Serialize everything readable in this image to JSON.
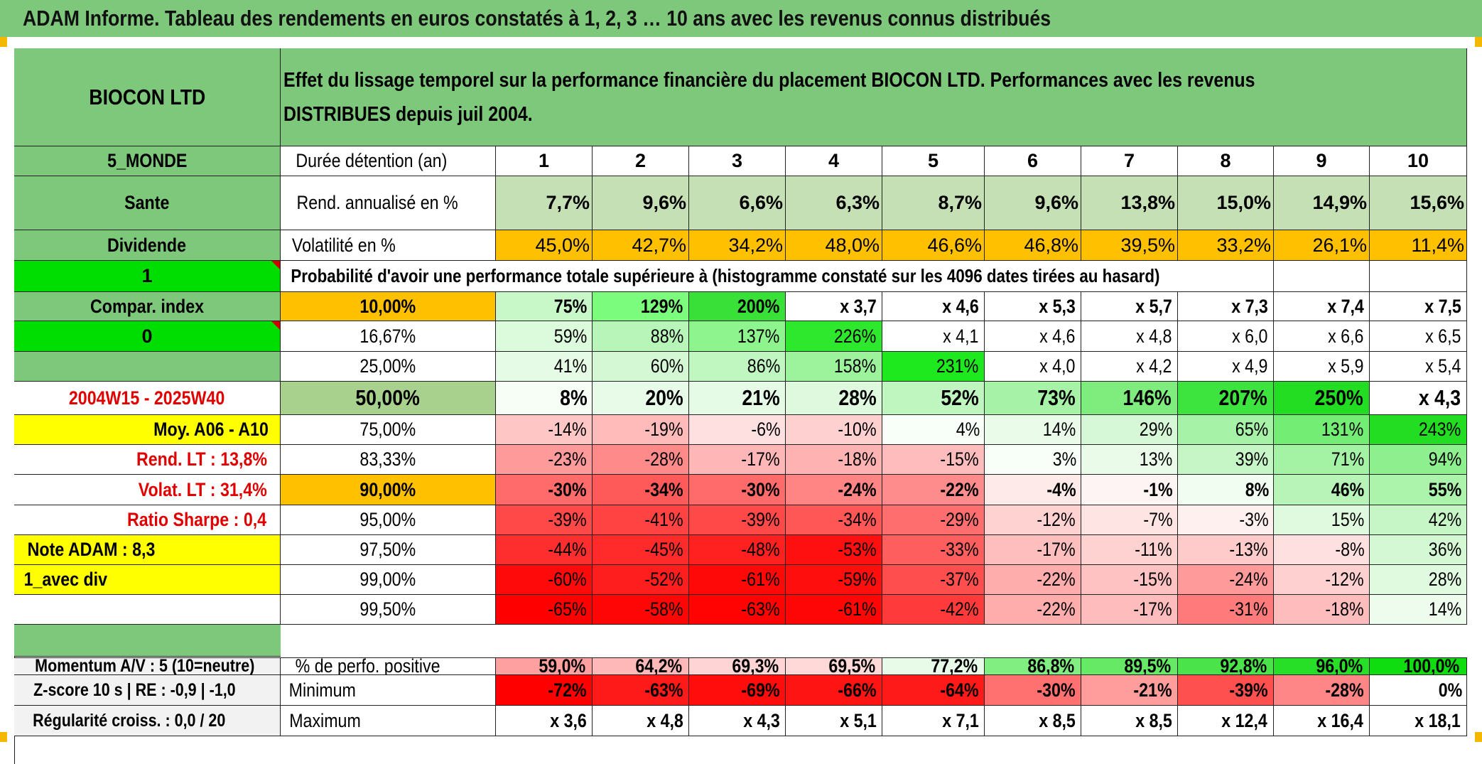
{
  "title": "ADAM Informe. Tableau des rendements en euros constatés à 1, 2, 3 … 10 ans avec les revenus connus distribués",
  "colors": {
    "header_green": "#7ec87b",
    "bright_green": "#00dd00",
    "orange": "#ffc000",
    "yellow": "#ffff00",
    "label_red": "#e00000"
  },
  "left": {
    "asset_name": "BIOCON LTD",
    "region": "5_MONDE",
    "sector": "Sante",
    "type": "Dividende",
    "flag_one": "1",
    "compar_index": "Compar. index",
    "flag_zero": "0",
    "blank_green": "",
    "period": "2004W15 - 2025W40",
    "moy": "Moy. A06 - A10",
    "rend_lt": "Rend. LT :    13,8%",
    "volat_lt": "Volat. LT :    31,4%",
    "sharpe": "Ratio Sharpe :    0,4",
    "note": "Note ADAM : 8,3",
    "avec_div": "1_avec div",
    "momentum": "Momentum A/V : 5 (10=neutre)",
    "zscore": "Z-score 10 s | RE : -0,9 | -1,0",
    "regularite": "Régularité croiss. : 0,0 / 20"
  },
  "header_text": "Effet du lissage temporel sur la performance financière du placement BIOCON LTD. Performances avec les revenus DISTRIBUES depuis juil 2004.",
  "duree_label": "Durée détention (an)",
  "years": [
    "1",
    "2",
    "3",
    "4",
    "5",
    "6",
    "7",
    "8",
    "9",
    "10"
  ],
  "rend_label": "Rend. annualisé en %",
  "rend": [
    "7,7%",
    "9,6%",
    "6,6%",
    "6,3%",
    "8,7%",
    "9,6%",
    "13,8%",
    "15,0%",
    "14,9%",
    "15,6%"
  ],
  "vol_label": "Volatilité en %",
  "vol": [
    "45,0%",
    "42,7%",
    "34,2%",
    "48,0%",
    "46,6%",
    "46,8%",
    "39,5%",
    "33,2%",
    "26,1%",
    "11,4%"
  ],
  "prob_text": "Probabilité d'avoir une performance totale supérieure à (histogramme constaté sur les 4096 dates tirées au hasard)",
  "quantiles": [
    {
      "p": "10,00%",
      "v": [
        "75%",
        "129%",
        "200%",
        "x 3,7",
        "x 4,6",
        "x 5,3",
        "x 5,7",
        "x 7,3",
        "x 7,4",
        "x 7,5"
      ]
    },
    {
      "p": "16,67%",
      "v": [
        "59%",
        "88%",
        "137%",
        "226%",
        "x 4,1",
        "x 4,6",
        "x 4,8",
        "x 6,0",
        "x 6,6",
        "x 6,5"
      ]
    },
    {
      "p": "25,00%",
      "v": [
        "41%",
        "60%",
        "86%",
        "158%",
        "231%",
        "x 4,0",
        "x 4,2",
        "x 4,9",
        "x 5,9",
        "x 5,4"
      ]
    },
    {
      "p": "50,00%",
      "v": [
        "8%",
        "20%",
        "21%",
        "28%",
        "52%",
        "73%",
        "146%",
        "207%",
        "250%",
        "x 4,3"
      ]
    },
    {
      "p": "75,00%",
      "v": [
        "-14%",
        "-19%",
        "-6%",
        "-10%",
        "4%",
        "14%",
        "29%",
        "65%",
        "131%",
        "243%"
      ]
    },
    {
      "p": "83,33%",
      "v": [
        "-23%",
        "-28%",
        "-17%",
        "-18%",
        "-15%",
        "3%",
        "13%",
        "39%",
        "71%",
        "94%"
      ]
    },
    {
      "p": "90,00%",
      "v": [
        "-30%",
        "-34%",
        "-30%",
        "-24%",
        "-22%",
        "-4%",
        "-1%",
        "8%",
        "46%",
        "55%"
      ]
    },
    {
      "p": "95,00%",
      "v": [
        "-39%",
        "-41%",
        "-39%",
        "-34%",
        "-29%",
        "-12%",
        "-7%",
        "-3%",
        "15%",
        "42%"
      ]
    },
    {
      "p": "97,50%",
      "v": [
        "-44%",
        "-45%",
        "-48%",
        "-53%",
        "-33%",
        "-17%",
        "-11%",
        "-13%",
        "-8%",
        "36%"
      ]
    },
    {
      "p": "99,00%",
      "v": [
        "-60%",
        "-52%",
        "-61%",
        "-59%",
        "-37%",
        "-22%",
        "-15%",
        "-24%",
        "-12%",
        "28%"
      ]
    },
    {
      "p": "99,50%",
      "v": [
        "-65%",
        "-58%",
        "-63%",
        "-61%",
        "-42%",
        "-22%",
        "-17%",
        "-31%",
        "-18%",
        "14%"
      ]
    }
  ],
  "pos_label": "% de perfo. positive",
  "pos": [
    "59,0%",
    "64,2%",
    "69,3%",
    "69,5%",
    "77,2%",
    "86,8%",
    "89,5%",
    "92,8%",
    "96,0%",
    "100,0%"
  ],
  "min_label": "Minimum",
  "min": [
    "-72%",
    "-63%",
    "-69%",
    "-66%",
    "-64%",
    "-30%",
    "-21%",
    "-39%",
    "-28%",
    "0%"
  ],
  "max_label": "Maximum",
  "max": [
    "x 3,6",
    "x 4,8",
    "x 4,3",
    "x 5,1",
    "x 7,1",
    "x 8,5",
    "x 8,5",
    "x 12,4",
    "x 16,4",
    "x 18,1"
  ],
  "fills": {
    "rend": [
      "#c5e0b4",
      "#c5e0b4",
      "#c5e0b4",
      "#c5e0b4",
      "#c5e0b4",
      "#c5e0b4",
      "#c5e0b4",
      "#c5e0b4",
      "#c5e0b4",
      "#c5e0b4"
    ],
    "vol": [
      "#ffc000",
      "#ffc000",
      "#ffc000",
      "#ffc000",
      "#ffc000",
      "#ffc000",
      "#ffc000",
      "#ffc000",
      "#ffc000",
      "#ffc000"
    ],
    "quantiles": [
      [
        "#c8f7c8",
        "#7cfc7c",
        "#38e038",
        "#ffffff",
        "#ffffff",
        "#ffffff",
        "#ffffff",
        "#ffffff",
        "#ffffff",
        "#ffffff"
      ],
      [
        "#dcfadc",
        "#b8f5b8",
        "#8ef58e",
        "#2ee82e",
        "#ffffff",
        "#ffffff",
        "#ffffff",
        "#ffffff",
        "#ffffff",
        "#ffffff"
      ],
      [
        "#e6fbe6",
        "#d4f8d4",
        "#c0f6c0",
        "#9cf39c",
        "#1ee81e",
        "#ffffff",
        "#ffffff",
        "#ffffff",
        "#ffffff",
        "#ffffff"
      ],
      [
        "#f6fef6",
        "#e8fbe8",
        "#e6fbe6",
        "#def9de",
        "#bff5bf",
        "#a6f2a6",
        "#7eed7e",
        "#3ee43e",
        "#22dd22",
        "#ffffff"
      ],
      [
        "#ffc6c6",
        "#ffbaba",
        "#ffe0e0",
        "#ffd0d0",
        "#f8fef8",
        "#eafbea",
        "#d6f8d6",
        "#a6f2a6",
        "#74ed74",
        "#22dd22"
      ],
      [
        "#ff9a9a",
        "#ff8a8a",
        "#ffb6b6",
        "#ffb2b2",
        "#ffbcbc",
        "#f8fef8",
        "#eafbea",
        "#c6f5c6",
        "#a4f2a4",
        "#8eef8e"
      ],
      [
        "#ff6a6a",
        "#ff5a5a",
        "#ff6a6a",
        "#ff8484",
        "#ff8c8c",
        "#ffeaea",
        "#fff4f4",
        "#f2fdf2",
        "#b8f4b8",
        "#acf3ac"
      ],
      [
        "#ff4848",
        "#ff4242",
        "#ff4848",
        "#ff5656",
        "#ff6e6e",
        "#ffd2d2",
        "#ffe4e4",
        "#fff0f0",
        "#e0fae0",
        "#c6f5c6"
      ],
      [
        "#ff2e2e",
        "#ff2a2a",
        "#ff2020",
        "#ff1010",
        "#ff5e5e",
        "#ffbebe",
        "#ffd2d2",
        "#ffcaca",
        "#ffe0e0",
        "#d4f8d4"
      ],
      [
        "#ff0a0a",
        "#ff1e1e",
        "#ff0808",
        "#ff0e0e",
        "#ff4e4e",
        "#ffacac",
        "#ffc2c2",
        "#ff9a9a",
        "#ffd0d0",
        "#e0fae0"
      ],
      [
        "#ff0000",
        "#ff0606",
        "#ff0202",
        "#ff0606",
        "#ff3a3a",
        "#ffacac",
        "#ffbcbc",
        "#ff7a7a",
        "#ffbcbc",
        "#eefcee"
      ]
    ],
    "pos": [
      "#ffa0a0",
      "#ffb8b8",
      "#ffd4d4",
      "#ffd8d8",
      "#e8fbe8",
      "#80ee80",
      "#66ea66",
      "#4ae44a",
      "#28df28",
      "#10dd10"
    ],
    "min": [
      "#ff0000",
      "#ff1a1a",
      "#ff0c0c",
      "#ff1414",
      "#ff1a1a",
      "#ff7070",
      "#ff9c9c",
      "#ff5050",
      "#ff8686",
      "#ffffff"
    ],
    "max": [
      "#ffffff",
      "#ffffff",
      "#ffffff",
      "#ffffff",
      "#ffffff",
      "#ffffff",
      "#ffffff",
      "#ffffff",
      "#ffffff",
      "#ffffff"
    ]
  }
}
